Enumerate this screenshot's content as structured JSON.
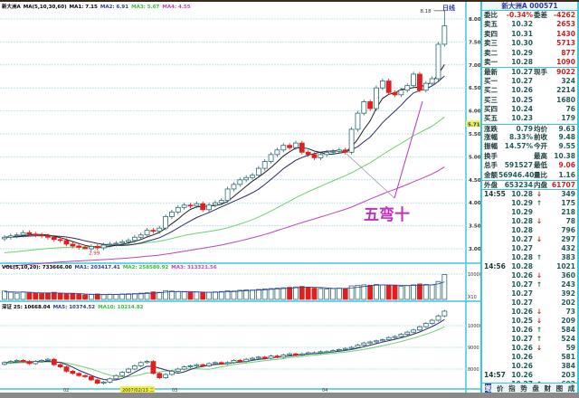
{
  "chart_header": {
    "name": "新大洲A",
    "ma_params": "MA(5,10,30,60)",
    "ma1": "MA1: 7.15",
    "ma2": "MA2: 6.91",
    "ma3": "MA3: 5.67",
    "ma4": "MA4: 4.55"
  },
  "period_label": "日线",
  "vol_header": {
    "name": "VOL(5,10,20): 733666.00",
    "ma1": "MA1: 203417.41",
    "ma2": "MA2: 258580.92",
    "ma3": "MA3: 313321.56"
  },
  "index_header": {
    "name": "深证 25: 10668.04",
    "ma1": "MA5: 10374.52",
    "ma2": "MA10: 10214.82"
  },
  "annotation": "五弯十",
  "high_label": "8.18",
  "low_label": "2.99",
  "current_price_label": "5.71",
  "colors": {
    "ma1": "#202020",
    "ma2": "#2a2a60",
    "ma3": "#70d070",
    "ma4": "#c040c0",
    "up": "#2a6a70",
    "down": "#e02020",
    "grid": "#bfe4ea",
    "border": "#3ec8d6",
    "annotation": "#c030c0"
  },
  "chart_data": {
    "type": "candlestick",
    "price_axis": {
      "ticks": [
        "8.00",
        "7.50",
        "7.00",
        "6.50",
        "6.00",
        "5.50",
        "5.00",
        "4.50",
        "4.00",
        "3.50",
        "3.00"
      ],
      "ylim": [
        3.0,
        8.0
      ]
    },
    "volume_axis": {
      "ticks": [
        "10000"
      ],
      "unit": "X10"
    },
    "index_axis": {
      "ticks": [
        "10000",
        "9000",
        "8000"
      ]
    },
    "date_labels": [
      "02",
      "2007/02/13 二",
      "03",
      "04"
    ],
    "close": [
      3.25,
      3.28,
      3.3,
      3.35,
      3.32,
      3.3,
      3.28,
      3.25,
      3.2,
      3.18,
      3.1,
      3.06,
      3.03,
      3.0,
      3.05,
      3.02,
      3.08,
      3.1,
      3.12,
      3.15,
      3.18,
      3.25,
      3.3,
      3.4,
      3.38,
      3.45,
      3.7,
      3.8,
      3.9,
      3.95,
      3.93,
      3.98,
      3.85,
      3.95,
      4.0,
      4.05,
      4.3,
      4.4,
      4.5,
      4.55,
      4.6,
      4.75,
      4.9,
      5.05,
      5.15,
      5.25,
      5.2,
      5.3,
      5.1,
      5.05,
      4.98,
      5.05,
      5.1,
      5.12,
      5.15,
      5.1,
      5.6,
      5.95,
      6.2,
      6.05,
      6.5,
      6.65,
      6.4,
      6.35,
      6.45,
      6.55,
      6.8,
      6.45,
      6.6,
      6.7,
      7.45,
      7.85
    ],
    "high": 8.18,
    "low": 2.99,
    "volume": [
      4000,
      3500,
      3000,
      3600,
      3200,
      3000,
      2800,
      3000,
      3400,
      3000,
      2600,
      2800,
      2500,
      2200,
      2400,
      2600,
      2300,
      2500,
      2400,
      2600,
      2700,
      2800,
      3000,
      3200,
      3600,
      3400,
      4200,
      4000,
      3800,
      3600,
      3400,
      3500,
      3300,
      3400,
      3600,
      3800,
      4200,
      4000,
      4400,
      4600,
      4500,
      4800,
      5000,
      5200,
      5400,
      5600,
      5800,
      6000,
      6200,
      5800,
      5400,
      5200,
      5000,
      5200,
      5400,
      5300,
      6500,
      6800,
      7000,
      6800,
      7200,
      7000,
      6800,
      6600,
      6400,
      6600,
      7000,
      7400,
      7200,
      7000,
      8600,
      12000
    ],
    "index_close": [
      8300,
      8350,
      8400,
      8350,
      8250,
      8350,
      8400,
      8450,
      8200,
      8100,
      7900,
      7800,
      7700,
      7650,
      7500,
      7350,
      7400,
      7550,
      7700,
      7850,
      8000,
      8150,
      8300,
      8350,
      7800,
      7600,
      7750,
      7900,
      8000,
      8100,
      8150,
      8200,
      8150,
      8250,
      8300,
      8250,
      8300,
      8400,
      8350,
      8450,
      8500,
      8550,
      8500,
      8600,
      8550,
      8650,
      8700,
      8650,
      8700,
      8750,
      8750,
      8800,
      8800,
      8850,
      8900,
      8950,
      9000,
      9100,
      9200,
      9250,
      9300,
      9350,
      9450,
      9500,
      9600,
      9700,
      9800,
      9950,
      10100,
      10250,
      10450,
      10668
    ]
  },
  "quote": {
    "title": "新大洲A 000571",
    "rows": [
      {
        "l": "委比",
        "p": "-0.34%",
        "l2": "委差",
        "v": "-4262",
        "pred": true,
        "vred": true
      },
      {
        "l": "卖五",
        "p": "10.32",
        "l2": "",
        "v": "2653",
        "vred": true
      },
      {
        "l": "卖四",
        "p": "10.31",
        "l2": "",
        "v": "1430",
        "vred": true
      },
      {
        "l": "卖三",
        "p": "10.30",
        "l2": "",
        "v": "5713",
        "vred": true
      },
      {
        "l": "卖二",
        "p": "10.29",
        "l2": "",
        "v": "877",
        "vred": true
      },
      {
        "l": "卖一",
        "p": "10.28",
        "l2": "",
        "v": "1090",
        "vred": true
      },
      {
        "l": "最新",
        "p": "10.27",
        "l2": "现手",
        "v": "9022",
        "vred": true
      },
      {
        "l": "买一",
        "p": "10.27",
        "l2": "",
        "v": "324"
      },
      {
        "l": "买二",
        "p": "10.26",
        "l2": "",
        "v": "2214"
      },
      {
        "l": "买三",
        "p": "10.25",
        "l2": "",
        "v": "1680"
      },
      {
        "l": "买四",
        "p": "10.24",
        "l2": "",
        "v": "76"
      },
      {
        "l": "买五",
        "p": "10.23",
        "l2": "",
        "v": "179"
      },
      {
        "l": "涨跌",
        "p": "0.79",
        "l2": "均价",
        "v": "9.63"
      },
      {
        "l": "涨幅",
        "p": "8.33%",
        "l2": "前收",
        "v": "9.48"
      },
      {
        "l": "振幅",
        "p": "14.57%",
        "l2": "今开",
        "v": "9.55"
      },
      {
        "l": "换手",
        "p": "",
        "l2": "最高",
        "v": "10.38"
      },
      {
        "l": "总手",
        "p": "591527",
        "l2": "最低",
        "v": "9.06",
        "vred": true
      },
      {
        "l": "金额",
        "p": "56946.40",
        "l2": "量比",
        "v": "1.16"
      },
      {
        "l": "外盘",
        "p": "653234",
        "l2": "内盘",
        "v": "61707",
        "vred": true
      }
    ],
    "ticks": [
      {
        "t": "14:55",
        "p": "10.28",
        "a": "↓",
        "v": "349"
      },
      {
        "t": "",
        "p": "10.29",
        "a": "↑",
        "v": "175"
      },
      {
        "t": "",
        "p": "10.29",
        "a": "",
        "v": "218"
      },
      {
        "t": "",
        "p": "10.28",
        "a": "↓",
        "v": "78"
      },
      {
        "t": "",
        "p": "10.28",
        "a": "",
        "v": "796"
      },
      {
        "t": "",
        "p": "10.27",
        "a": "↓",
        "v": "297"
      },
      {
        "t": "",
        "p": "10.27",
        "a": "",
        "v": "432"
      },
      {
        "t": "",
        "p": "10.28",
        "a": "↑",
        "v": "383"
      },
      {
        "t": "14:56",
        "p": "10.28",
        "a": "",
        "v": "1021"
      },
      {
        "t": "",
        "p": "10.26",
        "a": "↓",
        "v": "360"
      },
      {
        "t": "",
        "p": "10.27",
        "a": "↑",
        "v": "243"
      },
      {
        "t": "",
        "p": "10.27",
        "a": "",
        "v": "392"
      },
      {
        "t": "",
        "p": "10.27",
        "a": "",
        "v": "202"
      },
      {
        "t": "",
        "p": "10.26",
        "a": "↓",
        "v": "73"
      },
      {
        "t": "",
        "p": "10.25",
        "a": "↓",
        "v": "209"
      },
      {
        "t": "",
        "p": "10.26",
        "a": "↑",
        "v": "584"
      },
      {
        "t": "",
        "p": "10.27",
        "a": "↑",
        "v": "524"
      },
      {
        "t": "",
        "p": "10.26",
        "a": "↓",
        "v": "59"
      },
      {
        "t": "",
        "p": "10.26",
        "a": "",
        "v": "581"
      },
      {
        "t": "",
        "p": "10.26",
        "a": "",
        "v": "384"
      },
      {
        "t": "14:57",
        "p": "10.26",
        "a": "",
        "v": "203"
      },
      {
        "t": "",
        "p": "10.27",
        "a": "↑",
        "v": "602"
      }
    ],
    "tabs": [
      "笔",
      "价",
      "指",
      "势",
      "盘",
      "财",
      "图",
      "成"
    ]
  }
}
